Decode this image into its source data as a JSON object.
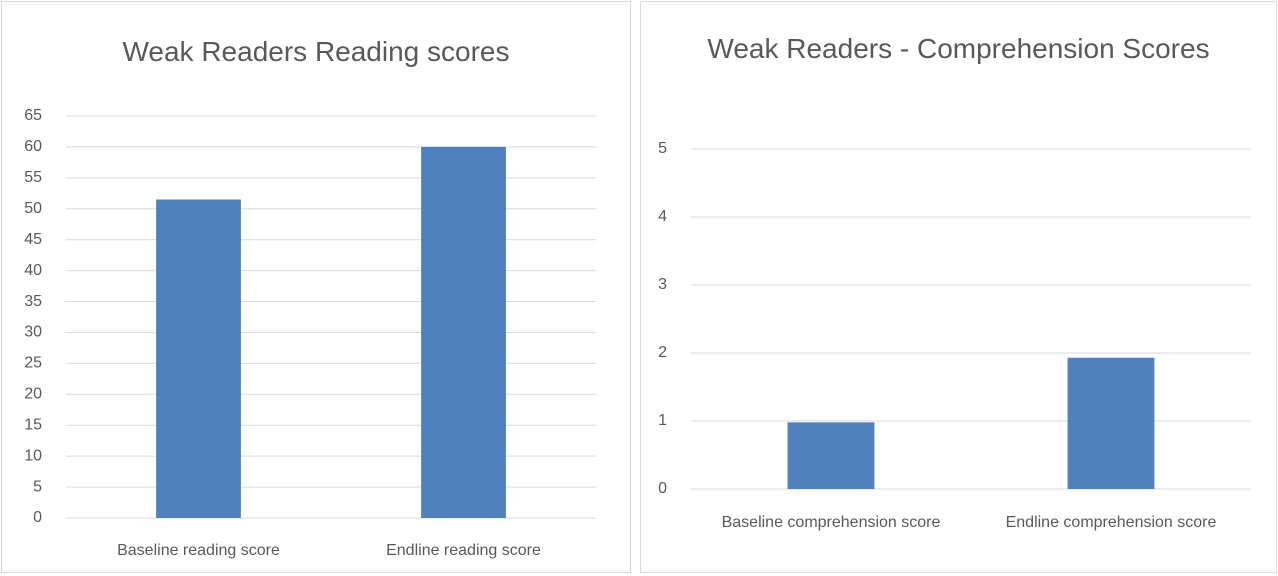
{
  "chart_data": [
    {
      "type": "bar",
      "title": "Weak Readers Reading scores",
      "categories": [
        "Baseline reading score",
        "Endline reading score"
      ],
      "values": [
        51.5,
        60
      ],
      "color": "#4f81bd",
      "ylim": [
        0,
        65
      ],
      "yticks": [
        0,
        5,
        10,
        15,
        20,
        25,
        30,
        35,
        40,
        45,
        50,
        55,
        60,
        65
      ],
      "grid": true
    },
    {
      "type": "bar",
      "title": "Weak Readers - Comprehension Scores",
      "categories": [
        "Baseline comprehension score",
        "Endline comprehension score"
      ],
      "values": [
        0.98,
        1.93
      ],
      "color": "#4f81bd",
      "ylim": [
        0,
        5
      ],
      "yticks": [
        0,
        1,
        2,
        3,
        4,
        5
      ],
      "grid": true
    }
  ]
}
